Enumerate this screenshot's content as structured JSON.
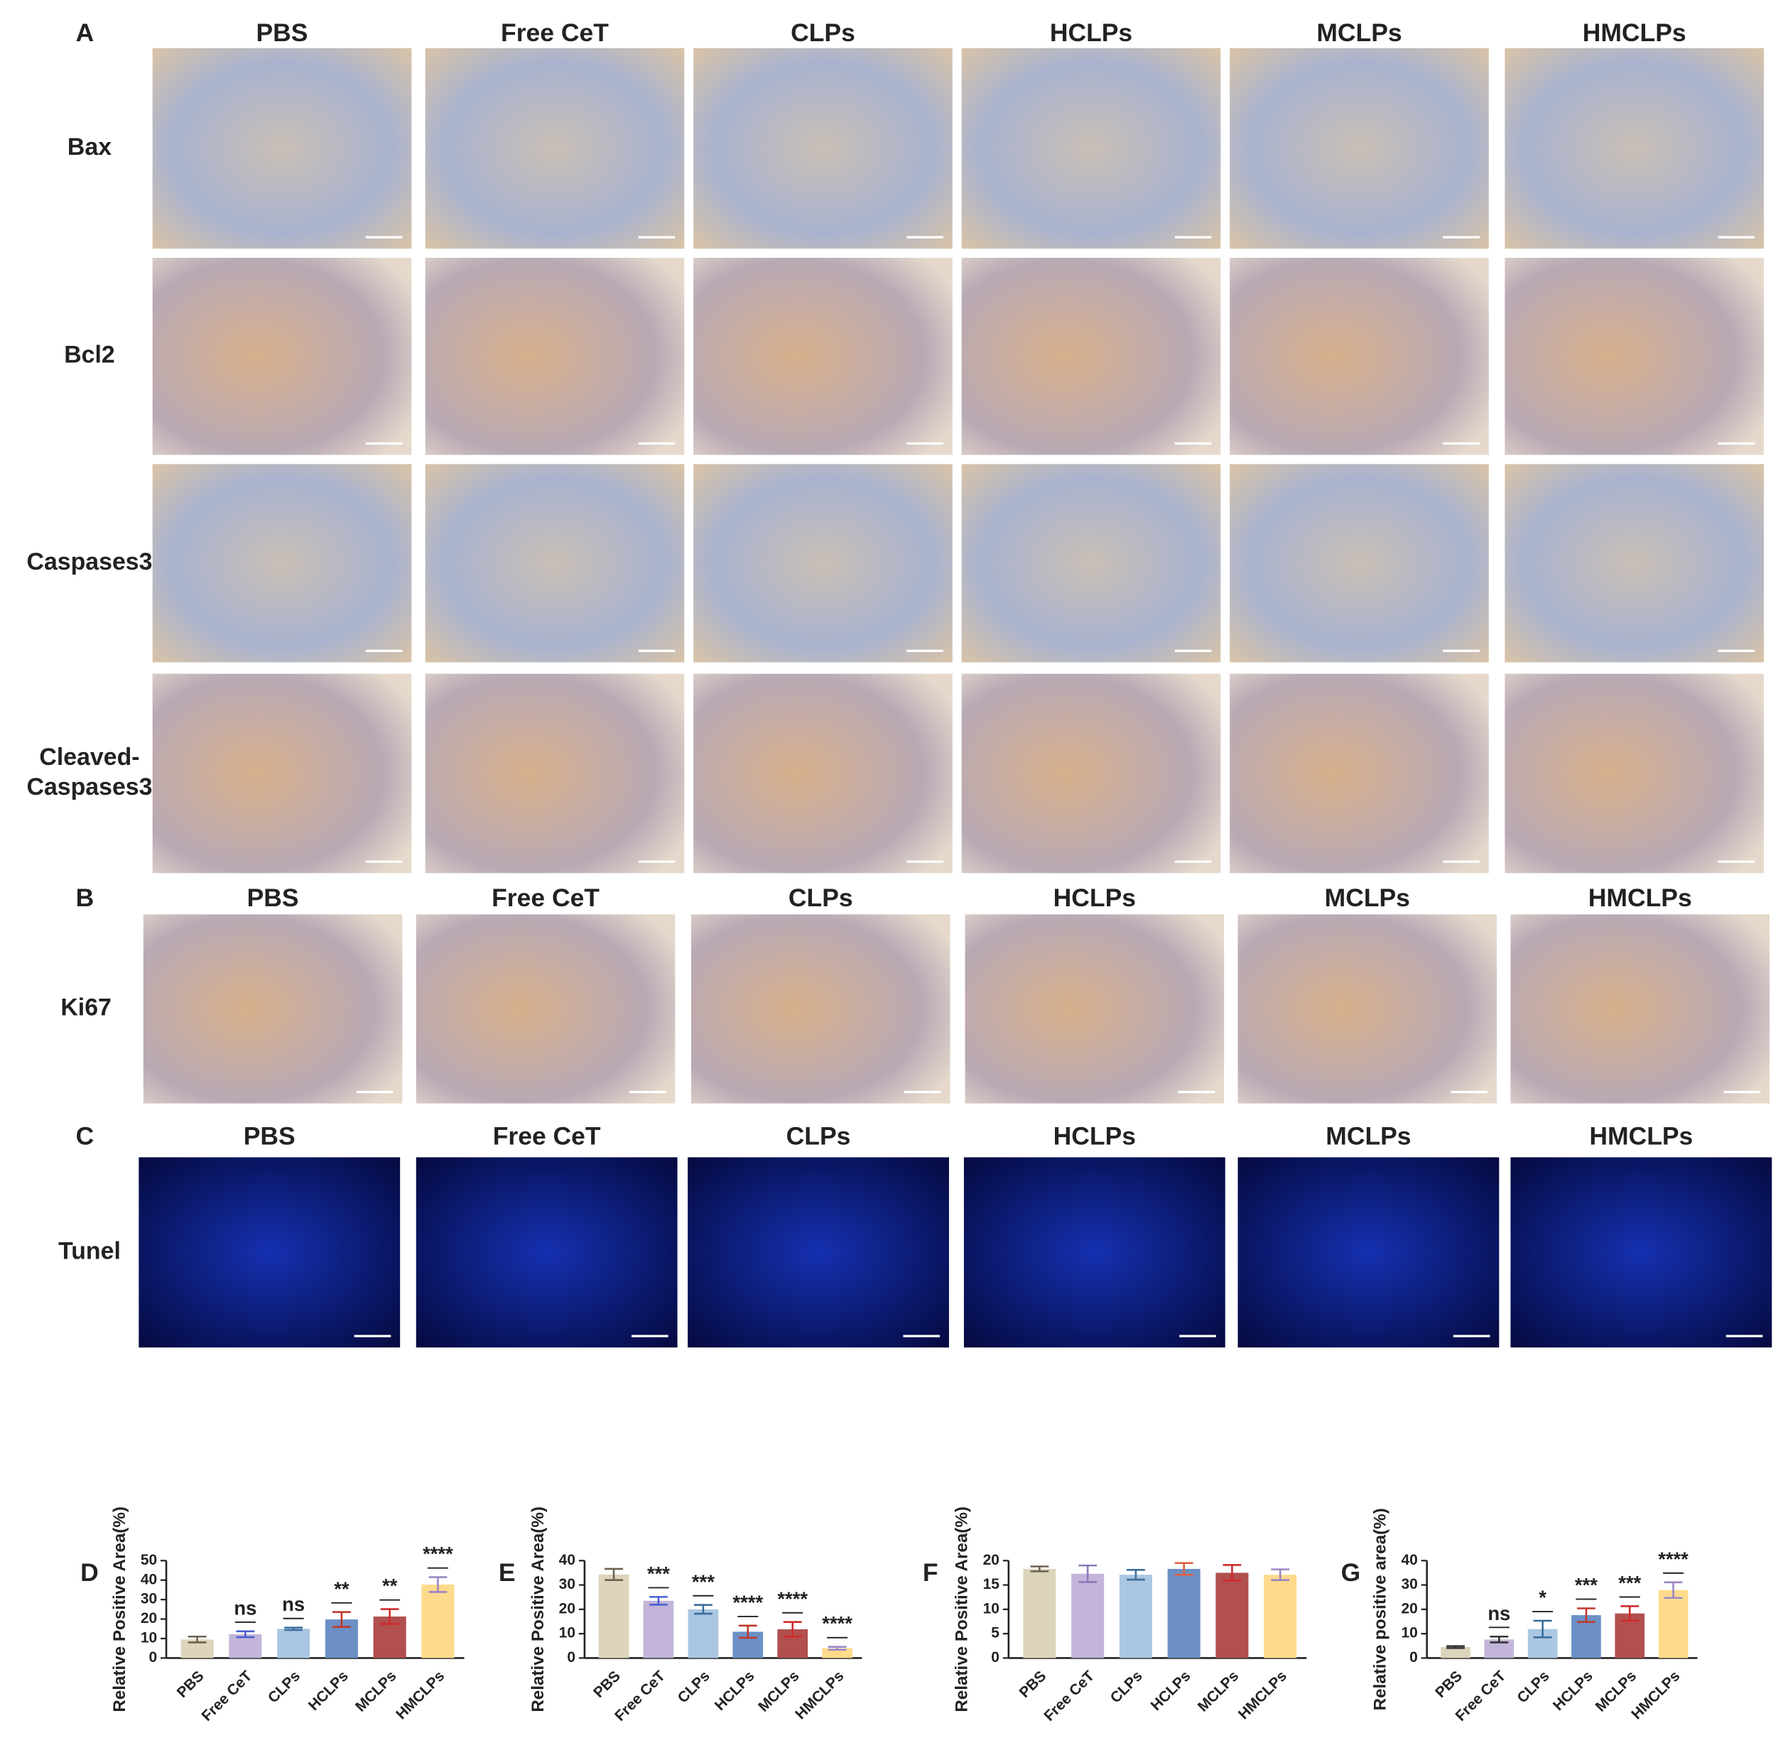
{
  "panels": {
    "A": {
      "label": "A",
      "columns": [
        "PBS",
        "Free CeT",
        "CLPs",
        "HCLPs",
        "MCLPs",
        "HMCLPs"
      ],
      "rows": [
        [
          "Bax"
        ],
        [
          "Bcl2"
        ],
        [
          "Caspases3"
        ],
        [
          "Cleaved-",
          "Caspases3"
        ]
      ]
    },
    "B": {
      "label": "B",
      "columns": [
        "PBS",
        "Free CeT",
        "CLPs",
        "HCLPs",
        "MCLPs",
        "HMCLPs"
      ],
      "rows": [
        [
          "Ki67"
        ]
      ]
    },
    "C": {
      "label": "C",
      "columns": [
        "PBS",
        "Free CeT",
        "CLPs",
        "HCLPs",
        "MCLPs",
        "HMCLPs"
      ],
      "rows": [
        [
          "Tunel"
        ]
      ]
    }
  },
  "chart_data": [
    {
      "type": "bar",
      "label": "D",
      "ylabel": "Relative Positive Area(%)",
      "categories": [
        "PBS",
        "Free CeT",
        "CLPs",
        "HCLPs",
        "MCLPs",
        "HMCLPs"
      ],
      "values": [
        9.5,
        12.2,
        15,
        19.8,
        21.3,
        37.7
      ],
      "errors": [
        1.5,
        1.5,
        0.6,
        3.8,
        3.8,
        3.8
      ],
      "significance": [
        null,
        "ns",
        "ns",
        "**",
        "**",
        "****"
      ],
      "colors": [
        "#dcd5bb",
        "#c3b5d9",
        "#abc6e2",
        "#6c90c6",
        "#b24f4f",
        "#fdda8c"
      ],
      "error_colors": [
        "#6b6250",
        "#4a5fd0",
        "#3a6d9c",
        "#c0392b",
        "#d02a2a",
        "#9a86c6"
      ],
      "ylim": [
        0,
        50
      ],
      "yticks": [
        0,
        10,
        20,
        30,
        40,
        50
      ]
    },
    {
      "type": "bar",
      "label": "E",
      "ylabel": "Relative Positive Area(%)",
      "categories": [
        "PBS",
        "Free CeT",
        "CLPs",
        "HCLPs",
        "MCLPs",
        "HMCLPs"
      ],
      "values": [
        34.3,
        23.5,
        20,
        10.8,
        11.8,
        4
      ],
      "errors": [
        2.3,
        1.6,
        1.8,
        2.5,
        3,
        0.6
      ],
      "significance": [
        null,
        "***",
        "***",
        "****",
        "****",
        "****"
      ],
      "colors": [
        "#dcd5bb",
        "#c3b5d9",
        "#abc6e2",
        "#6c90c6",
        "#b24f4f",
        "#fdda8c"
      ],
      "error_colors": [
        "#6b6250",
        "#4a5fd0",
        "#3a6d9c",
        "#c0392b",
        "#d02a2a",
        "#9a86c6"
      ],
      "ylim": [
        0,
        40
      ],
      "yticks": [
        0,
        10,
        20,
        30,
        40
      ]
    },
    {
      "type": "bar",
      "label": "F",
      "ylabel": "Relative Positive Area(%)",
      "categories": [
        "PBS",
        "Free CeT",
        "CLPs",
        "HCLPs",
        "MCLPs",
        "HMCLPs"
      ],
      "values": [
        18.3,
        17.3,
        17.1,
        18.3,
        17.5,
        17.1
      ],
      "errors": [
        0.5,
        1.7,
        1,
        1.2,
        1.6,
        1.1
      ],
      "significance": [
        null,
        null,
        null,
        null,
        null,
        null
      ],
      "colors": [
        "#dcd5bb",
        "#c3b5d9",
        "#abc6e2",
        "#6c90c6",
        "#b24f4f",
        "#fdda8c"
      ],
      "error_colors": [
        "#6b6250",
        "#8a78b8",
        "#3a6d9c",
        "#e06040",
        "#d02a2a",
        "#9a86c6"
      ],
      "ylim": [
        0,
        20
      ],
      "yticks": [
        0,
        5,
        10,
        15,
        20
      ]
    },
    {
      "type": "bar",
      "label": "G",
      "ylabel": "Relative positive area(%)",
      "categories": [
        "PBS",
        "Free CeT",
        "CLPs",
        "HCLPs",
        "MCLPs",
        "HMCLPs"
      ],
      "values": [
        4.5,
        7.6,
        11.9,
        17.6,
        18.3,
        27.9
      ],
      "errors": [
        0.4,
        1.2,
        3.4,
        2.8,
        3,
        3.2
      ],
      "significance": [
        null,
        "ns",
        "*",
        "***",
        "***",
        "****"
      ],
      "colors": [
        "#dcd5bb",
        "#c3b5d9",
        "#abc6e2",
        "#6c90c6",
        "#b24f4f",
        "#fdda8c"
      ],
      "error_colors": [
        "#333333",
        "#333333",
        "#3a6d9c",
        "#c0392b",
        "#d02a2a",
        "#9a86c6"
      ],
      "ylim": [
        0,
        40
      ],
      "yticks": [
        0,
        10,
        20,
        30,
        40
      ]
    }
  ]
}
